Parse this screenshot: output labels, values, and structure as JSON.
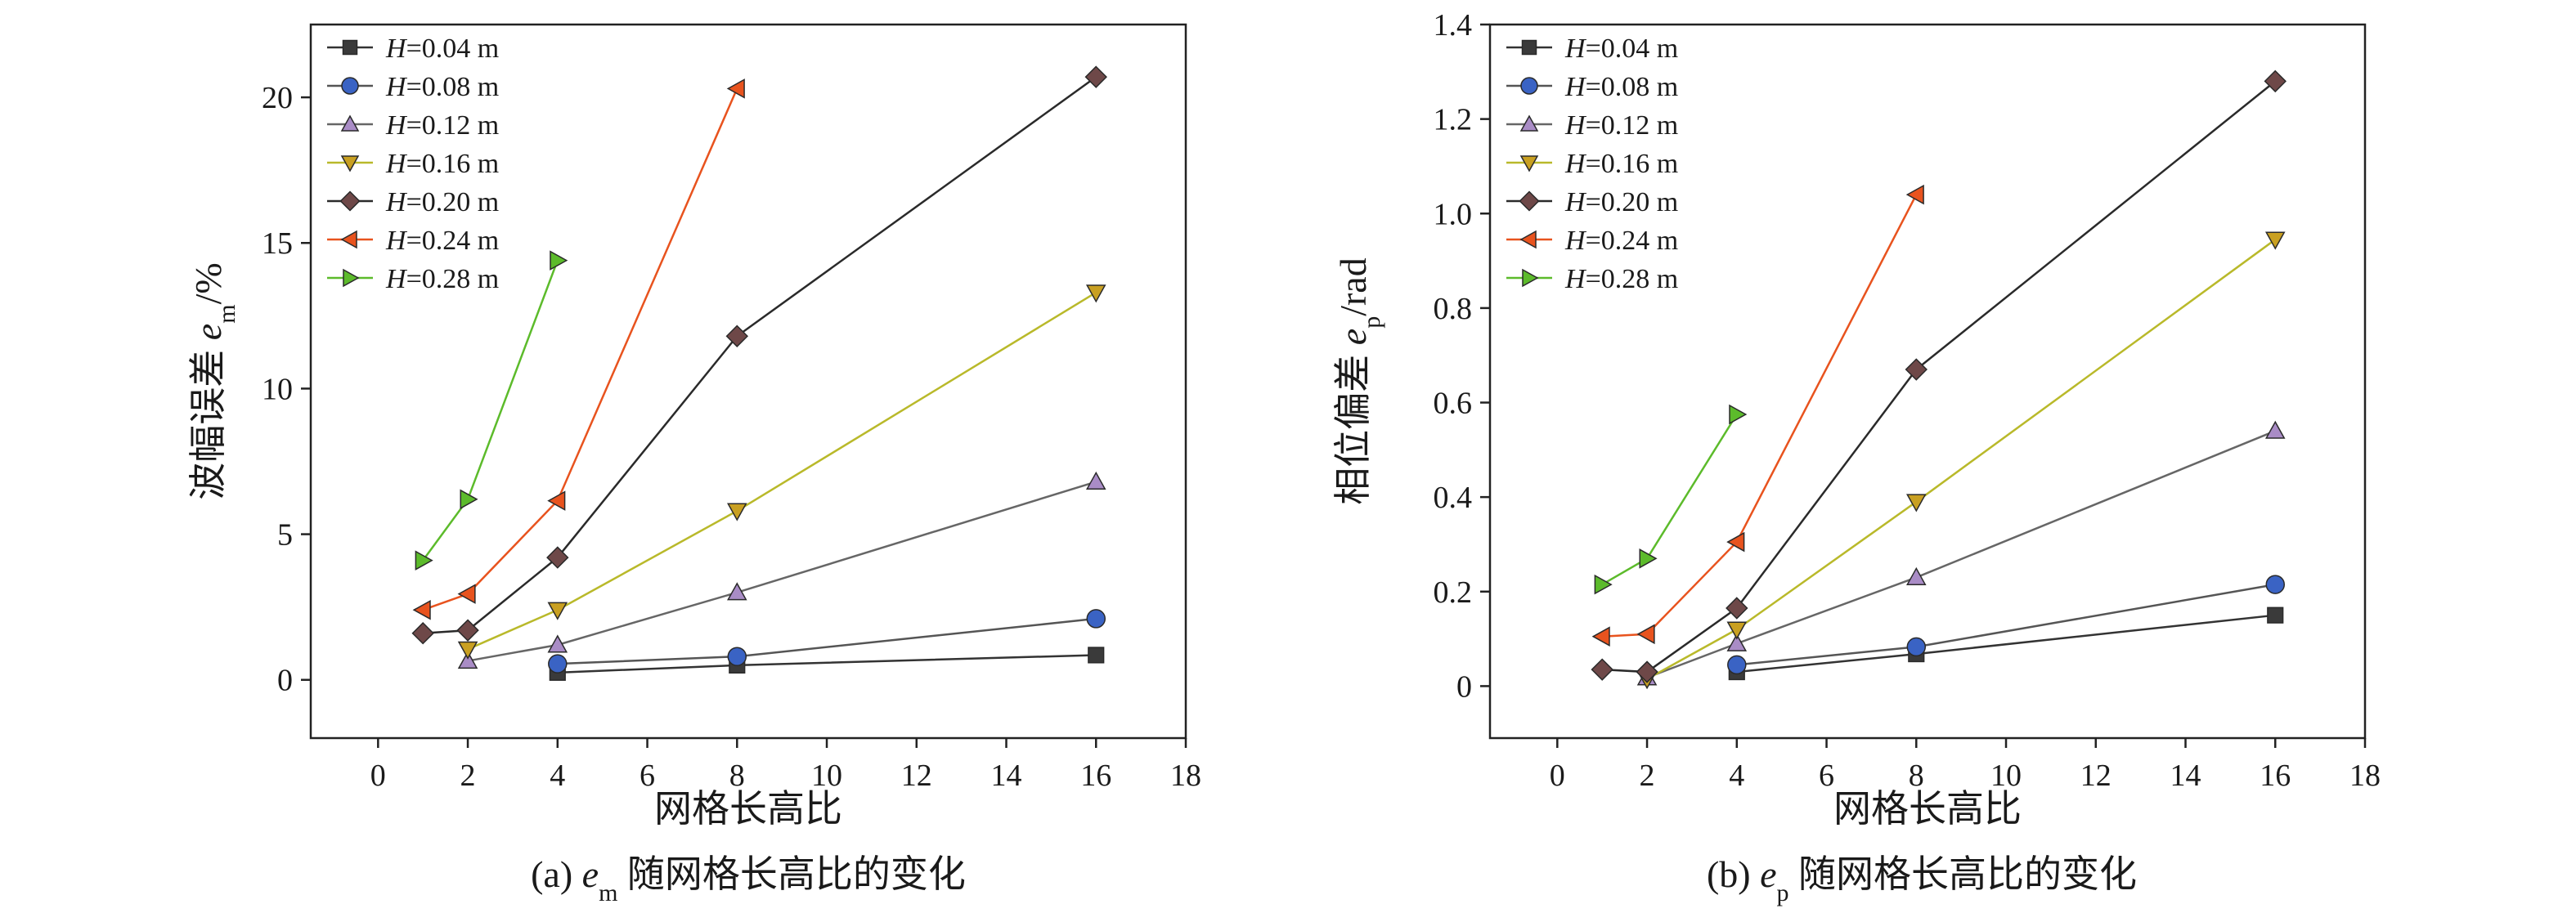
{
  "chart_data": [
    {
      "id": "a",
      "type": "line",
      "caption": {
        "prefix": "(a) ",
        "var": "e",
        "sub": "m",
        "suffix": " 随网格长高比的变化"
      },
      "xlabel": "网格长高比",
      "ylabel": {
        "prefix": "波幅误差 ",
        "var": "e",
        "sub": "m",
        "suffix": "/%"
      },
      "xlim": [
        -1.5,
        18
      ],
      "ylim": [
        -2,
        22.5
      ],
      "xticks": [
        0,
        2,
        4,
        6,
        8,
        10,
        12,
        14,
        16,
        18
      ],
      "yticks": [
        0,
        5,
        10,
        15,
        20
      ],
      "ytick_labels": [
        "0",
        "5",
        "10",
        "15",
        "20"
      ],
      "legend_position": "top-left",
      "series": [
        {
          "name": "H=0.04 m",
          "marker": "square",
          "color": "#3a3a3a",
          "line_color": "#333333",
          "x": [
            4,
            8,
            16
          ],
          "y": [
            0.25,
            0.5,
            0.85
          ]
        },
        {
          "name": "H=0.08 m",
          "marker": "circle",
          "color": "#3a63c4",
          "line_color": "#555555",
          "x": [
            4,
            8,
            16
          ],
          "y": [
            0.55,
            0.8,
            2.1
          ]
        },
        {
          "name": "H=0.12 m",
          "marker": "triangle-up",
          "color": "#a98cc6",
          "line_color": "#666666",
          "x": [
            2,
            4,
            8,
            16
          ],
          "y": [
            0.65,
            1.2,
            3.0,
            6.8
          ]
        },
        {
          "name": "H=0.16 m",
          "marker": "triangle-down",
          "color": "#c9a021",
          "line_color": "#b9b92a",
          "x": [
            2,
            4,
            8,
            16
          ],
          "y": [
            1.05,
            2.4,
            5.8,
            13.3
          ]
        },
        {
          "name": "H=0.20 m",
          "marker": "diamond",
          "color": "#6e4848",
          "line_color": "#2a2a2a",
          "x": [
            1,
            2,
            4,
            8,
            16
          ],
          "y": [
            1.6,
            1.7,
            4.2,
            11.8,
            20.7
          ]
        },
        {
          "name": "H=0.24 m",
          "marker": "triangle-left",
          "color": "#e8531e",
          "line_color": "#e8531e",
          "x": [
            1,
            2,
            4,
            8
          ],
          "y": [
            2.4,
            2.95,
            6.15,
            20.3
          ]
        },
        {
          "name": "H=0.28 m",
          "marker": "triangle-right",
          "color": "#5cbb2b",
          "line_color": "#5cbb2b",
          "x": [
            1,
            2,
            4
          ],
          "y": [
            4.1,
            6.2,
            14.4
          ]
        }
      ]
    },
    {
      "id": "b",
      "type": "line",
      "caption": {
        "prefix": "(b) ",
        "var": "e",
        "sub": "p",
        "suffix": " 随网格长高比的变化"
      },
      "xlabel": "网格长高比",
      "ylabel": {
        "prefix": "相位偏差 ",
        "var": "e",
        "sub": "p",
        "suffix": "/rad"
      },
      "xlim": [
        -1.5,
        18
      ],
      "ylim": [
        -0.11,
        1.4
      ],
      "xticks": [
        0,
        2,
        4,
        6,
        8,
        10,
        12,
        14,
        16,
        18
      ],
      "yticks": [
        0,
        0.2,
        0.4,
        0.6,
        0.8,
        1.0,
        1.2,
        1.4
      ],
      "ytick_labels": [
        "0",
        "0.2",
        "0.4",
        "0.6",
        "0.8",
        "1.0",
        "1.2",
        "1.4"
      ],
      "legend_position": "top-left",
      "series": [
        {
          "name": "H=0.04 m",
          "marker": "square",
          "color": "#3a3a3a",
          "line_color": "#333333",
          "x": [
            4,
            8,
            16
          ],
          "y": [
            0.03,
            0.068,
            0.15
          ]
        },
        {
          "name": "H=0.08 m",
          "marker": "circle",
          "color": "#3a63c4",
          "line_color": "#555555",
          "x": [
            4,
            8,
            16
          ],
          "y": [
            0.045,
            0.083,
            0.215
          ]
        },
        {
          "name": "H=0.12 m",
          "marker": "triangle-up",
          "color": "#a98cc6",
          "line_color": "#666666",
          "x": [
            2,
            4,
            8,
            16
          ],
          "y": [
            0.018,
            0.09,
            0.23,
            0.54
          ]
        },
        {
          "name": "H=0.16 m",
          "marker": "triangle-down",
          "color": "#c9a021",
          "line_color": "#b9b92a",
          "x": [
            2,
            4,
            8,
            16
          ],
          "y": [
            0.015,
            0.12,
            0.39,
            0.945
          ]
        },
        {
          "name": "H=0.20 m",
          "marker": "diamond",
          "color": "#6e4848",
          "line_color": "#2a2a2a",
          "x": [
            1,
            2,
            4,
            8,
            16
          ],
          "y": [
            0.035,
            0.03,
            0.165,
            0.67,
            1.28
          ]
        },
        {
          "name": "H=0.24 m",
          "marker": "triangle-left",
          "color": "#e8531e",
          "line_color": "#e8531e",
          "x": [
            1,
            2,
            4,
            8
          ],
          "y": [
            0.105,
            0.11,
            0.305,
            1.04
          ]
        },
        {
          "name": "H=0.28 m",
          "marker": "triangle-right",
          "color": "#5cbb2b",
          "line_color": "#5cbb2b",
          "x": [
            1,
            2,
            4
          ],
          "y": [
            0.215,
            0.27,
            0.575
          ]
        }
      ]
    }
  ]
}
